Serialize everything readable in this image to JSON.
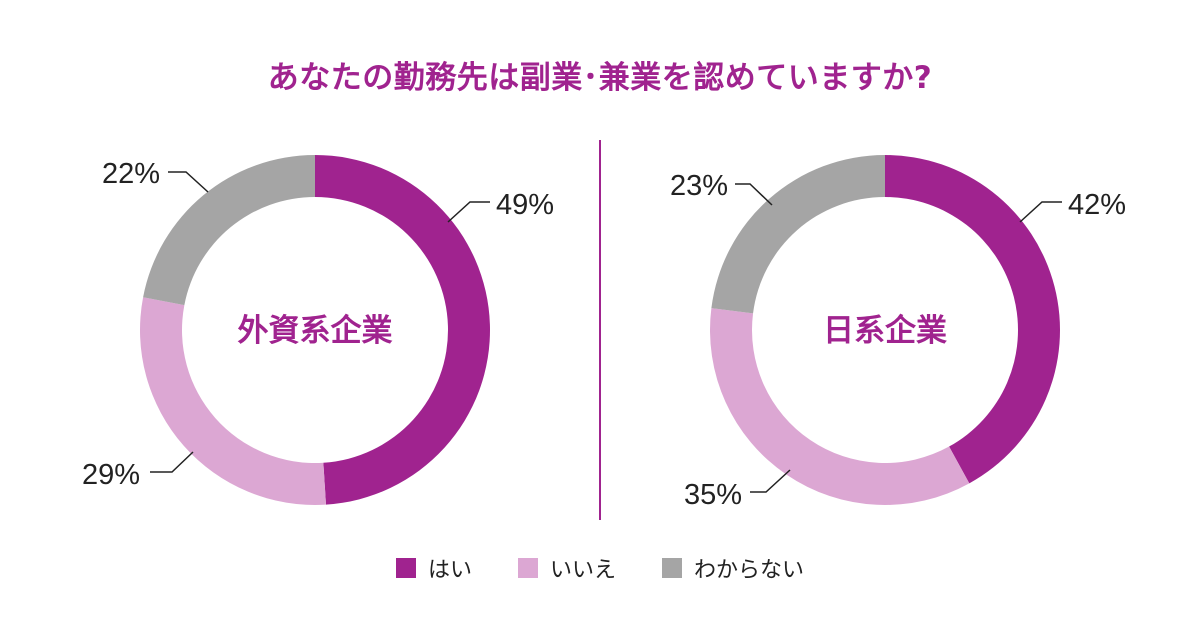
{
  "title": "あなたの勤務先は副業･兼業を認めていますか?",
  "colors": {
    "yes": "#a0238f",
    "no": "#dca7d3",
    "unknown": "#a5a5a5",
    "divider": "#a0238f"
  },
  "legend": [
    {
      "label": "はい",
      "color": "#a0238f"
    },
    {
      "label": "いいえ",
      "color": "#dca7d3"
    },
    {
      "label": "わからない",
      "color": "#a5a5a5"
    }
  ],
  "chart_data": [
    {
      "type": "pie",
      "center_label": "外資系企業",
      "categories": [
        "はい",
        "いいえ",
        "わからない"
      ],
      "values": [
        49,
        29,
        22
      ],
      "labels": [
        "49%",
        "29%",
        "22%"
      ]
    },
    {
      "type": "pie",
      "center_label": "日系企業",
      "categories": [
        "はい",
        "いいえ",
        "わからない"
      ],
      "values": [
        42,
        35,
        23
      ],
      "labels": [
        "42%",
        "35%",
        "23%"
      ]
    }
  ]
}
